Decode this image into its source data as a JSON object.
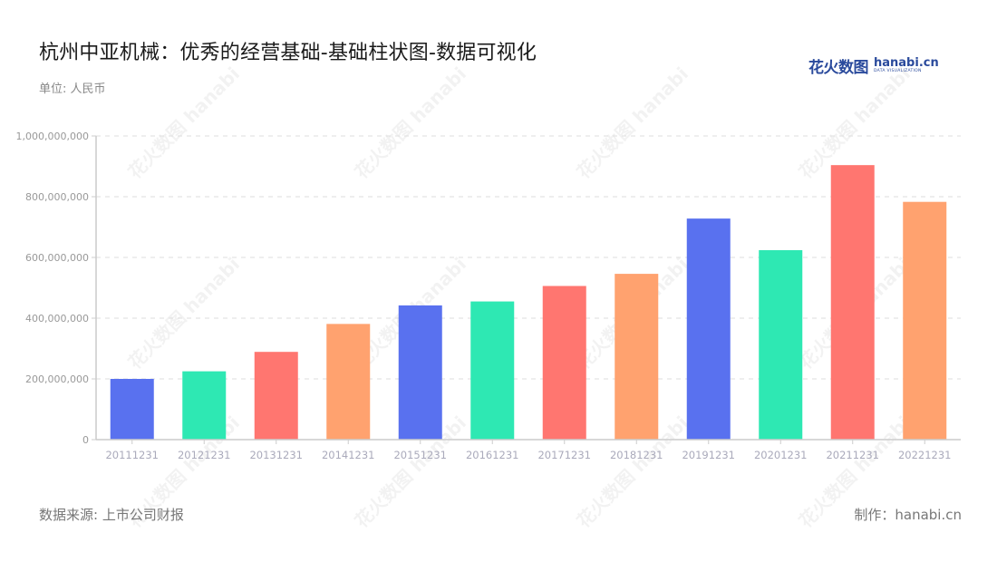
{
  "header": {
    "title": "杭州中亚机械：优秀的经营基础-基础柱状图-数据可视化",
    "unit": "单位: 人民币"
  },
  "logo": {
    "cn": "花火数图",
    "en": "hanabi.cn",
    "en_sub": "DATA VISUALIZATION"
  },
  "footer": {
    "source": "数据来源: 上市公司财报",
    "credit": "制作：hanabi.cn"
  },
  "watermark_text": "花火数图 hanabi",
  "colors": [
    "#5971EF",
    "#2EE8B3",
    "#FF7670",
    "#FFA26F"
  ],
  "chart_data": {
    "type": "bar",
    "title": "杭州中亚机械：优秀的经营基础-基础柱状图-数据可视化",
    "xlabel": "",
    "ylabel": "单位: 人民币",
    "categories": [
      "20111231",
      "20121231",
      "20131231",
      "20141231",
      "20151231",
      "20161231",
      "20171231",
      "20181231",
      "20191231",
      "20201231",
      "20211231",
      "20221231"
    ],
    "values": [
      200000000,
      225000000,
      289000000,
      381000000,
      442000000,
      455000000,
      506000000,
      546000000,
      728000000,
      624000000,
      904000000,
      783000000
    ],
    "ylim": [
      0,
      1000000000
    ],
    "yticks": [
      "0",
      "200,000,000",
      "400,000,000",
      "600,000,000",
      "800,000,000",
      "1,000,000,000"
    ],
    "ytick_values": [
      0,
      200000000,
      400000000,
      600000000,
      800000000,
      1000000000
    ],
    "grid": true,
    "legend": null
  }
}
